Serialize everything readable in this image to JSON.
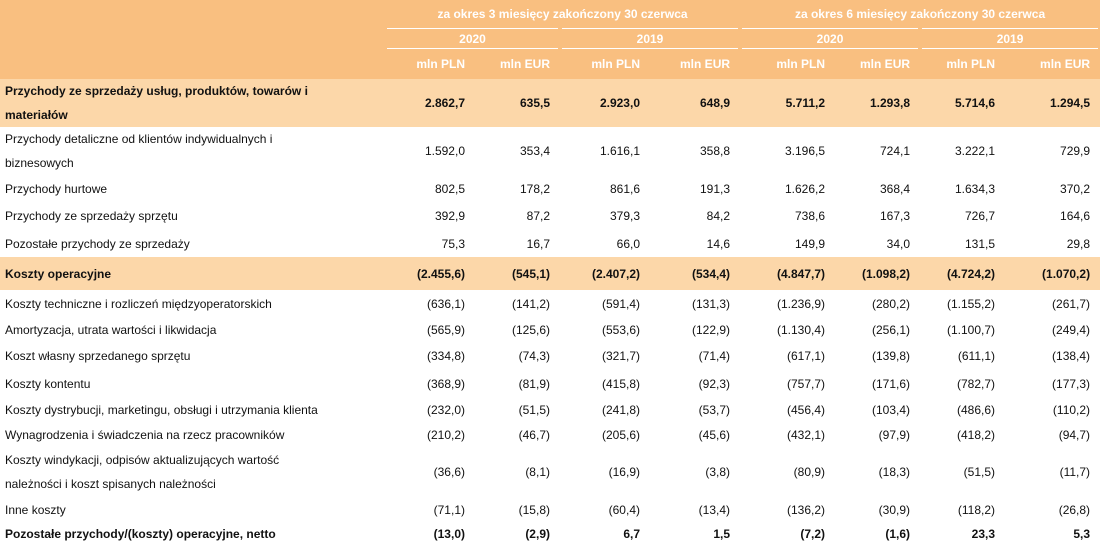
{
  "header": {
    "periods": [
      "za okres 3 miesięcy zakończony 30 czerwca",
      "za okres 6 miesięcy zakończony 30 czerwca"
    ],
    "years": [
      "2020",
      "2019",
      "2020",
      "2019"
    ],
    "units": [
      "mln PLN",
      "mln EUR",
      "mln PLN",
      "mln EUR",
      "mln PLN",
      "mln EUR",
      "mln PLN",
      "mln EUR"
    ]
  },
  "table": {
    "rows": [
      {
        "label": "Przychody ze sprzedaży usług, produktów, towarów i\nmateriałów",
        "values": [
          "2.862,7",
          "635,5",
          "2.923,0",
          "648,9",
          "5.711,2",
          "1.293,8",
          "5.714,6",
          "1.294,5"
        ]
      },
      {
        "label": "Przychody detaliczne od klientów indywidualnych i\nbiznesowych",
        "values": [
          "1.592,0",
          "353,4",
          "1.616,1",
          "358,8",
          "3.196,5",
          "724,1",
          "3.222,1",
          "729,9"
        ]
      },
      {
        "label": "Przychody hurtowe",
        "values": [
          "802,5",
          "178,2",
          "861,6",
          "191,3",
          "1.626,2",
          "368,4",
          "1.634,3",
          "370,2"
        ]
      },
      {
        "label": "Przychody ze sprzedaży sprzętu",
        "values": [
          "392,9",
          "87,2",
          "379,3",
          "84,2",
          "738,6",
          "167,3",
          "726,7",
          "164,6"
        ]
      },
      {
        "label": "Pozostałe przychody ze sprzedaży",
        "values": [
          "75,3",
          "16,7",
          "66,0",
          "14,6",
          "149,9",
          "34,0",
          "131,5",
          "29,8"
        ]
      },
      {
        "label": "Koszty operacyjne",
        "values": [
          "(2.455,6)",
          "(545,1)",
          "(2.407,2)",
          "(534,4)",
          "(4.847,7)",
          "(1.098,2)",
          "(4.724,2)",
          "(1.070,2)"
        ]
      },
      {
        "label": "Koszty techniczne i rozliczeń międzyoperatorskich",
        "values": [
          "(636,1)",
          "(141,2)",
          "(591,4)",
          "(131,3)",
          "(1.236,9)",
          "(280,2)",
          "(1.155,2)",
          "(261,7)"
        ]
      },
      {
        "label": "Amortyzacja, utrata wartości i likwidacja",
        "values": [
          "(565,9)",
          "(125,6)",
          "(553,6)",
          "(122,9)",
          "(1.130,4)",
          "(256,1)",
          "(1.100,7)",
          "(249,4)"
        ]
      },
      {
        "label": "Koszt własny sprzedanego sprzętu",
        "values": [
          "(334,8)",
          "(74,3)",
          "(321,7)",
          "(71,4)",
          "(617,1)",
          "(139,8)",
          "(611,1)",
          "(138,4)"
        ]
      },
      {
        "label": "Koszty kontentu",
        "values": [
          "(368,9)",
          "(81,9)",
          "(415,8)",
          "(92,3)",
          "(757,7)",
          "(171,6)",
          "(782,7)",
          "(177,3)"
        ]
      },
      {
        "label": "Koszty dystrybucji, marketingu, obsługi i utrzymania klienta",
        "values": [
          "(232,0)",
          "(51,5)",
          "(241,8)",
          "(53,7)",
          "(456,4)",
          "(103,4)",
          "(486,6)",
          "(110,2)"
        ]
      },
      {
        "label": "Wynagrodzenia i świadczenia na rzecz pracowników",
        "values": [
          "(210,2)",
          "(46,7)",
          "(205,6)",
          "(45,6)",
          "(432,1)",
          "(97,9)",
          "(418,2)",
          "(94,7)"
        ]
      },
      {
        "label": "Koszty windykacji, odpisów aktualizujących wartość\nnależności i koszt spisanych należności",
        "values": [
          "(36,6)",
          "(8,1)",
          "(16,9)",
          "(3,8)",
          "(80,9)",
          "(18,3)",
          "(51,5)",
          "(11,7)"
        ]
      },
      {
        "label": "Inne koszty",
        "values": [
          "(71,1)",
          "(15,8)",
          "(60,4)",
          "(13,4)",
          "(136,2)",
          "(30,9)",
          "(118,2)",
          "(26,8)"
        ]
      },
      {
        "label": "Pozostałe przychody/(koszty) operacyjne, netto",
        "values": [
          "(13,0)",
          "(2,9)",
          "6,7",
          "1,5",
          "(7,2)",
          "(1,6)",
          "23,3",
          "5,3"
        ]
      }
    ]
  }
}
